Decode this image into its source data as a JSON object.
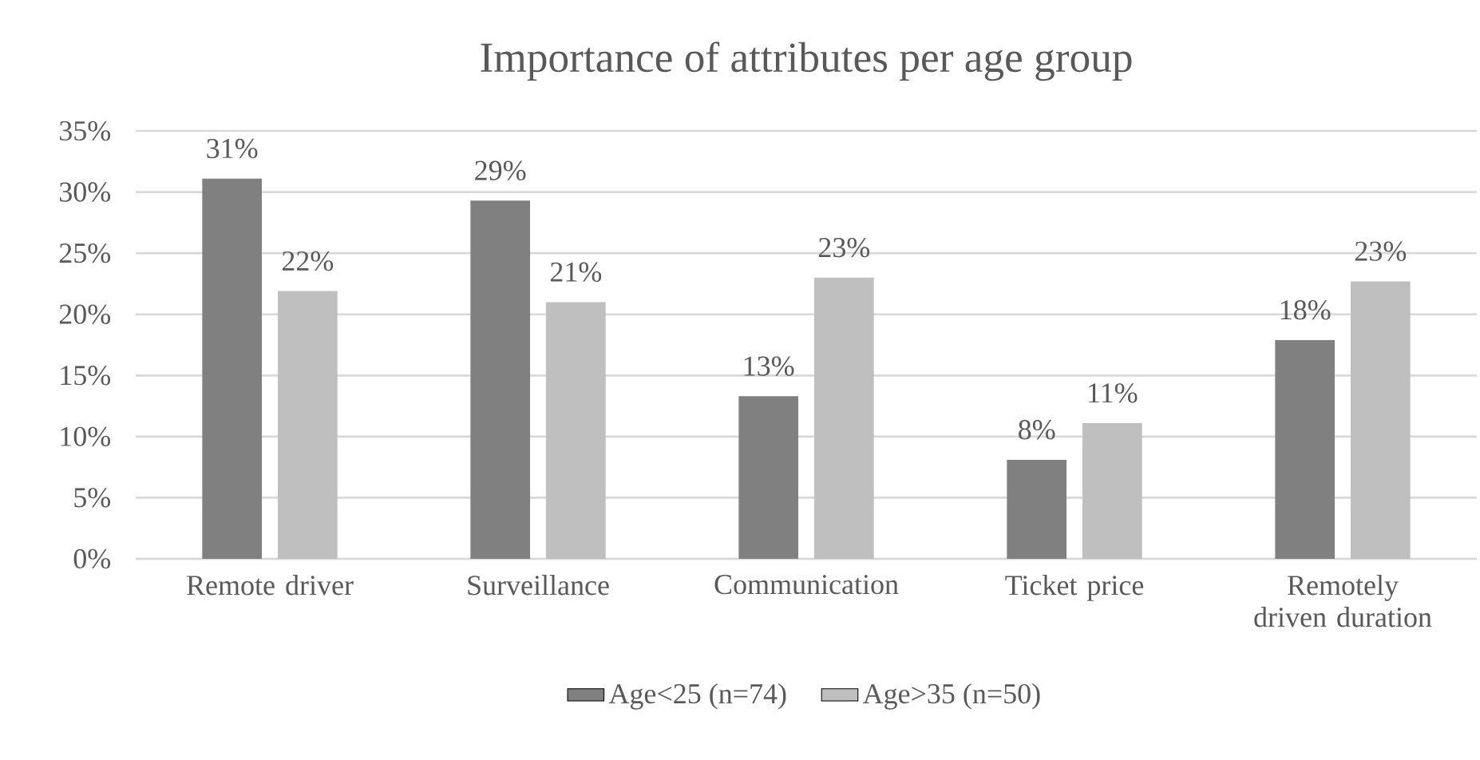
{
  "chart_data": {
    "type": "bar",
    "title": "Importance of attributes per age group",
    "categories": [
      "Remote driver",
      "Surveillance",
      "Communication",
      "Ticket price",
      "Remotely driven duration"
    ],
    "series": [
      {
        "name": "Age<25 (n=74)",
        "color": "#808080",
        "values": [
          31.1,
          29.3,
          13.3,
          8.1,
          17.9
        ],
        "value_labels": [
          "31%",
          "29%",
          "13%",
          "8%",
          "18%"
        ]
      },
      {
        "name": "Age>35 (n=50)",
        "color": "#bfbfbf",
        "values": [
          21.9,
          21.0,
          23.0,
          11.1,
          22.7
        ],
        "value_labels": [
          "22%",
          "21%",
          "23%",
          "11%",
          "23%"
        ]
      }
    ],
    "ylim": [
      0,
      35
    ],
    "yticks": [
      {
        "value": 0,
        "label": "0%"
      },
      {
        "value": 5,
        "label": "5%"
      },
      {
        "value": 10,
        "label": "10%"
      },
      {
        "value": 15,
        "label": "15%"
      },
      {
        "value": 20,
        "label": "20%"
      },
      {
        "value": 25,
        "label": "25%"
      },
      {
        "value": 30,
        "label": "30%"
      },
      {
        "value": 35,
        "label": "35%"
      }
    ],
    "grid": "y",
    "legend": "bottom"
  }
}
